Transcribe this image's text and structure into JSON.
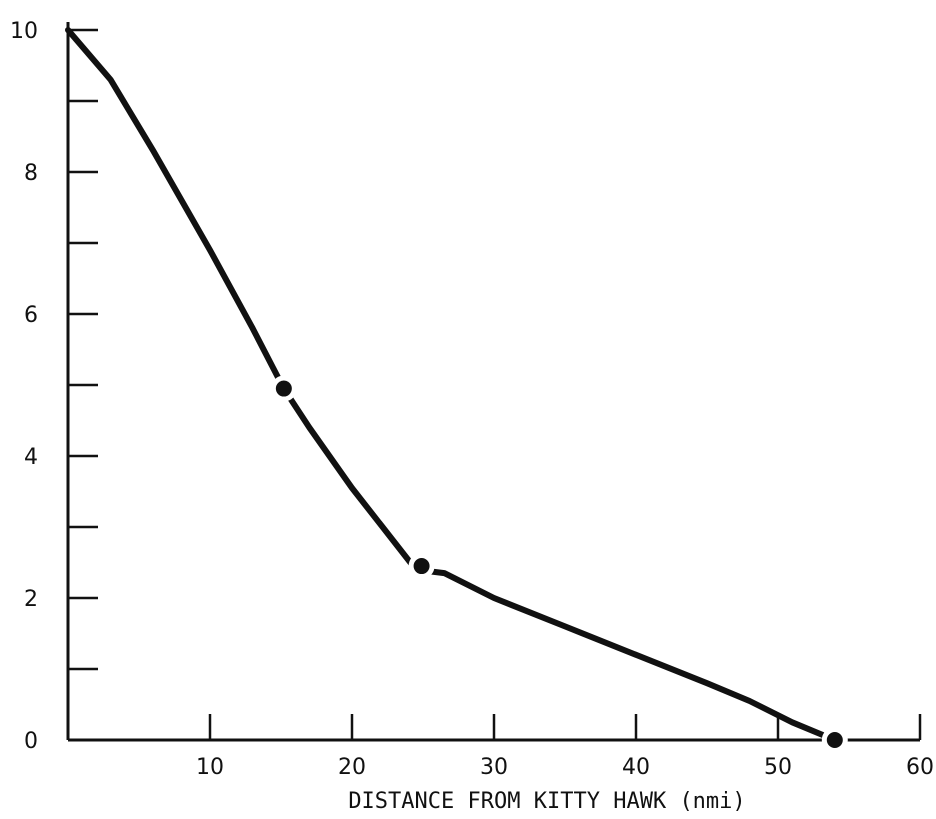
{
  "chart_data": {
    "type": "line",
    "title": "",
    "xlabel": "DISTANCE FROM KITTY HAWK (nmi)",
    "ylabel": "",
    "xlim": [
      0,
      60
    ],
    "ylim": [
      0,
      10
    ],
    "grid": false,
    "x_ticks": [
      10,
      20,
      30,
      40,
      50,
      60
    ],
    "x_tick_labels": [
      "10",
      "20",
      "30",
      "40",
      "50",
      "60"
    ],
    "y_ticks": [
      0,
      2,
      4,
      6,
      8,
      10
    ],
    "y_tick_labels": [
      "0",
      "2",
      "4",
      "6",
      "8",
      "10"
    ],
    "y_minor_ticks": [
      1,
      3,
      5,
      7,
      9
    ],
    "series": [
      {
        "x": [
          0,
          3,
          6,
          10,
          13,
          15.2,
          17,
          20,
          24.5,
          26.5,
          30,
          35,
          40,
          45,
          48,
          51,
          54
        ],
        "y": [
          10,
          9.3,
          8.3,
          6.9,
          5.8,
          4.95,
          4.4,
          3.55,
          2.4,
          2.35,
          2.0,
          1.6,
          1.2,
          0.8,
          0.55,
          0.25,
          0.0
        ]
      }
    ],
    "markers": [
      {
        "x": 15.2,
        "y": 4.95
      },
      {
        "x": 24.9,
        "y": 2.45
      },
      {
        "x": 54,
        "y": 0.0
      }
    ],
    "colors": {
      "ink": "#111111"
    }
  }
}
